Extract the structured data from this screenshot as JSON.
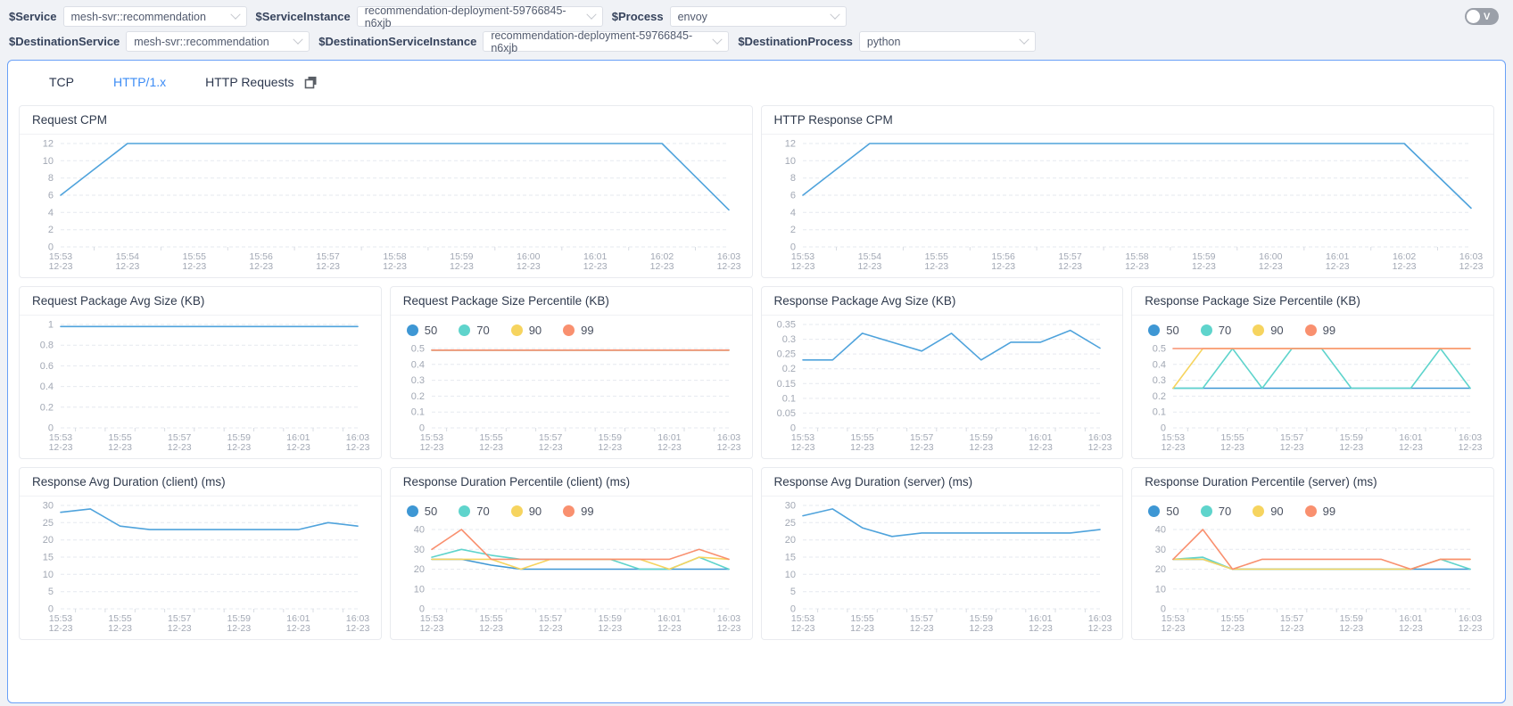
{
  "header": {
    "row1": {
      "service_label": "$Service",
      "service_value": "mesh-svr::recommendation",
      "instance_label": "$ServiceInstance",
      "instance_value": "recommendation-deployment-59766845-n6xjb",
      "process_label": "$Process",
      "process_value": "envoy"
    },
    "row2": {
      "service_label": "$DestinationService",
      "service_value": "mesh-svr::recommendation",
      "instance_label": "$DestinationServiceInstance",
      "instance_value": "recommendation-deployment-59766845-n6xjb",
      "process_label": "$DestinationProcess",
      "process_value": "python"
    },
    "toggle_label": "V"
  },
  "tabs": [
    {
      "label": "TCP"
    },
    {
      "label": "HTTP/1.x"
    },
    {
      "label": "HTTP Requests"
    }
  ],
  "active_tab": "HTTP/1.x",
  "icons": {
    "tab_copy": "copy-icon",
    "select_chevron": "chevron-down-icon"
  },
  "colors": {
    "line": "#4FA3DC",
    "p50": "#3E97D4",
    "p70": "#5FD4CC",
    "p90": "#F6D45F",
    "p99": "#F9906F",
    "tab_active": "#3d8cf5",
    "panel_border": "#69a0f7"
  },
  "chart_data": [
    {
      "type": "line",
      "title": "Request CPM",
      "categories": [
        "15:53",
        "15:54",
        "15:55",
        "15:56",
        "15:57",
        "15:58",
        "15:59",
        "16:00",
        "16:01",
        "16:02",
        "16:03"
      ],
      "date": "12-23",
      "ylim": [
        0,
        12
      ],
      "y_ticks": [
        0,
        2,
        4,
        6,
        8,
        10,
        12
      ],
      "x_label_every": 1,
      "grid": true,
      "legend": null,
      "series": [
        {
          "name": "Request CPM",
          "color": "#4FA3DC",
          "values": [
            6,
            12,
            12,
            12,
            12,
            12,
            12,
            12,
            12,
            12,
            4.3
          ]
        }
      ]
    },
    {
      "type": "line",
      "title": "HTTP Response CPM",
      "categories": [
        "15:53",
        "15:54",
        "15:55",
        "15:56",
        "15:57",
        "15:58",
        "15:59",
        "16:00",
        "16:01",
        "16:02",
        "16:03"
      ],
      "date": "12-23",
      "ylim": [
        0,
        12
      ],
      "y_ticks": [
        0,
        2,
        4,
        6,
        8,
        10,
        12
      ],
      "x_label_every": 1,
      "grid": true,
      "legend": null,
      "series": [
        {
          "name": "HTTP Response CPM",
          "color": "#4FA3DC",
          "values": [
            6,
            12,
            12,
            12,
            12,
            12,
            12,
            12,
            12,
            12,
            4.5
          ]
        }
      ]
    },
    {
      "type": "line",
      "title": "Request Package Avg Size (KB)",
      "categories": [
        "15:53",
        "15:54",
        "15:55",
        "15:56",
        "15:57",
        "15:58",
        "15:59",
        "16:00",
        "16:01",
        "16:02",
        "16:03"
      ],
      "date": "12-23",
      "ylim": [
        0,
        1
      ],
      "y_ticks": [
        0,
        0.2,
        0.4,
        0.6,
        0.8,
        1
      ],
      "x_label_every": 2,
      "grid": true,
      "legend": null,
      "series": [
        {
          "name": "Request Package Avg Size",
          "color": "#4FA3DC",
          "values": [
            0.98,
            0.98,
            0.98,
            0.98,
            0.98,
            0.98,
            0.98,
            0.98,
            0.98,
            0.98,
            0.98
          ]
        }
      ]
    },
    {
      "type": "line",
      "title": "Request Package Size Percentile (KB)",
      "categories": [
        "15:53",
        "15:54",
        "15:55",
        "15:56",
        "15:57",
        "15:58",
        "15:59",
        "16:00",
        "16:01",
        "16:02",
        "16:03"
      ],
      "date": "12-23",
      "ylim": [
        0,
        0.5
      ],
      "y_ticks": [
        0,
        0.1,
        0.2,
        0.3,
        0.4,
        0.5
      ],
      "x_label_every": 2,
      "grid": true,
      "legend": [
        "50",
        "70",
        "90",
        "99"
      ],
      "series": [
        {
          "name": "50",
          "color": "#3E97D4",
          "values": [
            0.49,
            0.49,
            0.49,
            0.49,
            0.49,
            0.49,
            0.49,
            0.49,
            0.49,
            0.49,
            0.49
          ]
        },
        {
          "name": "70",
          "color": "#5FD4CC",
          "values": [
            0.49,
            0.49,
            0.49,
            0.49,
            0.49,
            0.49,
            0.49,
            0.49,
            0.49,
            0.49,
            0.49
          ]
        },
        {
          "name": "90",
          "color": "#F6D45F",
          "values": [
            0.49,
            0.49,
            0.49,
            0.49,
            0.49,
            0.49,
            0.49,
            0.49,
            0.49,
            0.49,
            0.49
          ]
        },
        {
          "name": "99",
          "color": "#F9906F",
          "values": [
            0.49,
            0.49,
            0.49,
            0.49,
            0.49,
            0.49,
            0.49,
            0.49,
            0.49,
            0.49,
            0.49
          ]
        }
      ]
    },
    {
      "type": "line",
      "title": "Response Package Avg Size (KB)",
      "categories": [
        "15:53",
        "15:54",
        "15:55",
        "15:56",
        "15:57",
        "15:58",
        "15:59",
        "16:00",
        "16:01",
        "16:02",
        "16:03"
      ],
      "date": "12-23",
      "ylim": [
        0,
        0.35
      ],
      "y_ticks": [
        0,
        0.05,
        0.1,
        0.15,
        0.2,
        0.25,
        0.3,
        0.35
      ],
      "x_label_every": 2,
      "grid": true,
      "legend": null,
      "series": [
        {
          "name": "Response Package Avg Size",
          "color": "#4FA3DC",
          "values": [
            0.23,
            0.23,
            0.32,
            0.29,
            0.26,
            0.32,
            0.23,
            0.29,
            0.29,
            0.33,
            0.27
          ]
        }
      ]
    },
    {
      "type": "line",
      "title": "Response Package Size Percentile (KB)",
      "categories": [
        "15:53",
        "15:54",
        "15:55",
        "15:56",
        "15:57",
        "15:58",
        "15:59",
        "16:00",
        "16:01",
        "16:02",
        "16:03"
      ],
      "date": "12-23",
      "ylim": [
        0,
        0.5
      ],
      "y_ticks": [
        0,
        0.1,
        0.2,
        0.3,
        0.4,
        0.5
      ],
      "x_label_every": 2,
      "grid": true,
      "legend": [
        "50",
        "70",
        "90",
        "99"
      ],
      "series": [
        {
          "name": "50",
          "color": "#3E97D4",
          "values": [
            0.25,
            0.25,
            0.25,
            0.25,
            0.25,
            0.25,
            0.25,
            0.25,
            0.25,
            0.25,
            0.25
          ]
        },
        {
          "name": "70",
          "color": "#5FD4CC",
          "values": [
            0.25,
            0.25,
            0.5,
            0.25,
            0.5,
            0.5,
            0.25,
            0.25,
            0.25,
            0.5,
            0.25
          ]
        },
        {
          "name": "90",
          "color": "#F6D45F",
          "values": [
            0.25,
            0.5,
            0.5,
            0.5,
            0.5,
            0.5,
            0.5,
            0.5,
            0.5,
            0.5,
            0.5
          ]
        },
        {
          "name": "99",
          "color": "#F9906F",
          "values": [
            0.5,
            0.5,
            0.5,
            0.5,
            0.5,
            0.5,
            0.5,
            0.5,
            0.5,
            0.5,
            0.5
          ]
        }
      ]
    },
    {
      "type": "line",
      "title": "Response Avg Duration (client) (ms)",
      "categories": [
        "15:53",
        "15:54",
        "15:55",
        "15:56",
        "15:57",
        "15:58",
        "15:59",
        "16:00",
        "16:01",
        "16:02",
        "16:03"
      ],
      "date": "12-23",
      "ylim": [
        0,
        30
      ],
      "y_ticks": [
        0,
        5,
        10,
        15,
        20,
        25,
        30
      ],
      "x_label_every": 2,
      "grid": true,
      "legend": null,
      "series": [
        {
          "name": "Response Avg Duration (client)",
          "color": "#4FA3DC",
          "values": [
            28,
            29,
            24,
            23,
            23,
            23,
            23,
            23,
            23,
            25,
            24
          ]
        }
      ]
    },
    {
      "type": "line",
      "title": "Response Duration Percentile (client) (ms)",
      "categories": [
        "15:53",
        "15:54",
        "15:55",
        "15:56",
        "15:57",
        "15:58",
        "15:59",
        "16:00",
        "16:01",
        "16:02",
        "16:03"
      ],
      "date": "12-23",
      "ylim": [
        0,
        40
      ],
      "y_ticks": [
        0,
        10,
        20,
        30,
        40
      ],
      "x_label_every": 2,
      "grid": true,
      "legend": [
        "50",
        "70",
        "90",
        "99"
      ],
      "series": [
        {
          "name": "50",
          "color": "#3E97D4",
          "values": [
            25,
            25,
            22,
            20,
            20,
            20,
            20,
            20,
            20,
            20,
            20
          ]
        },
        {
          "name": "70",
          "color": "#5FD4CC",
          "values": [
            26,
            30,
            27,
            25,
            25,
            25,
            25,
            20,
            20,
            26,
            20
          ]
        },
        {
          "name": "90",
          "color": "#F6D45F",
          "values": [
            25,
            25,
            25,
            20,
            25,
            25,
            25,
            25,
            20,
            26,
            25
          ]
        },
        {
          "name": "99",
          "color": "#F9906F",
          "values": [
            30,
            40,
            25,
            25,
            25,
            25,
            25,
            25,
            25,
            30,
            25
          ]
        }
      ]
    },
    {
      "type": "line",
      "title": "Response Avg Duration (server) (ms)",
      "categories": [
        "15:53",
        "15:54",
        "15:55",
        "15:56",
        "15:57",
        "15:58",
        "15:59",
        "16:00",
        "16:01",
        "16:02",
        "16:03"
      ],
      "date": "12-23",
      "ylim": [
        0,
        30
      ],
      "y_ticks": [
        0,
        5,
        10,
        15,
        20,
        25,
        30
      ],
      "x_label_every": 2,
      "grid": true,
      "legend": null,
      "series": [
        {
          "name": "Response Avg Duration (server)",
          "color": "#4FA3DC",
          "values": [
            27,
            29,
            23.5,
            21,
            22,
            22,
            22,
            22,
            22,
            22,
            23
          ]
        }
      ]
    },
    {
      "type": "line",
      "title": "Response Duration Percentile (server) (ms)",
      "categories": [
        "15:53",
        "15:54",
        "15:55",
        "15:56",
        "15:57",
        "15:58",
        "15:59",
        "16:00",
        "16:01",
        "16:02",
        "16:03"
      ],
      "date": "12-23",
      "ylim": [
        0,
        40
      ],
      "y_ticks": [
        0,
        10,
        20,
        30,
        40
      ],
      "x_label_every": 2,
      "grid": true,
      "legend": [
        "50",
        "70",
        "90",
        "99"
      ],
      "series": [
        {
          "name": "50",
          "color": "#3E97D4",
          "values": [
            25,
            25,
            20,
            20,
            20,
            20,
            20,
            20,
            20,
            20,
            20
          ]
        },
        {
          "name": "70",
          "color": "#5FD4CC",
          "values": [
            25,
            26,
            20,
            20,
            20,
            20,
            20,
            20,
            20,
            25,
            20
          ]
        },
        {
          "name": "90",
          "color": "#F6D45F",
          "values": [
            25,
            25,
            20,
            20,
            20,
            20,
            20,
            20,
            20,
            25,
            25
          ]
        },
        {
          "name": "99",
          "color": "#F9906F",
          "values": [
            25,
            40,
            20,
            25,
            25,
            25,
            25,
            25,
            20,
            25,
            25
          ]
        }
      ]
    }
  ]
}
